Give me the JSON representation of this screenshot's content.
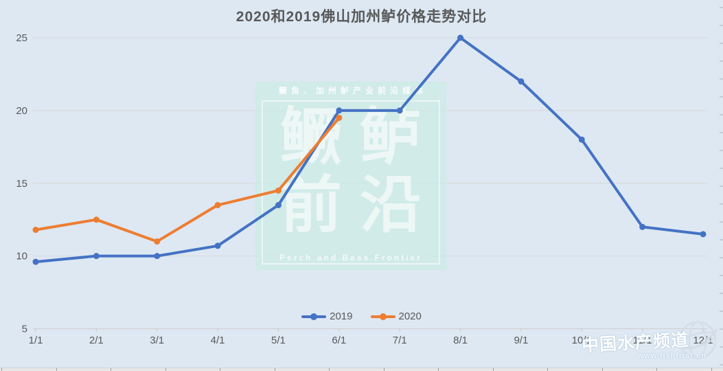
{
  "chart_data": {
    "type": "line",
    "title": "2020和2019佛山加州鲈价格走势对比",
    "xlabel": "",
    "ylabel": "",
    "categories": [
      "1/1",
      "2/1",
      "3/1",
      "4/1",
      "5/1",
      "6/1",
      "7/1",
      "8/1",
      "9/1",
      "10/1",
      "11/1",
      "12/1"
    ],
    "series": [
      {
        "name": "2019",
        "color": "#4472c4",
        "values": [
          9.6,
          10,
          10,
          10.7,
          13.5,
          20,
          20,
          25,
          22,
          18,
          12,
          11.5
        ]
      },
      {
        "name": "2020",
        "color": "#ed7d31",
        "values": [
          11.8,
          12.5,
          11,
          13.5,
          14.5,
          19.5
        ]
      }
    ],
    "ylim": [
      5,
      25
    ],
    "yticks": [
      5,
      10,
      15,
      20,
      25
    ],
    "grid": true,
    "legend_position": "bottom"
  },
  "watermark_center": {
    "top_text": "鳜鱼、加州鲈产业前沿媒体",
    "line1": "鳜鲈",
    "line2": "前沿",
    "bottom_text": "Perch and Bass Frontier"
  },
  "watermark_corner": {
    "brand": "中国水产频道",
    "url": "www.fishfirst.cn",
    "icon": "globe-icon"
  },
  "colors": {
    "background": "#dde8f3",
    "gridline": "#d8d8d8",
    "axis_line": "#cfcfcf",
    "axis_text": "#595959",
    "title_text": "#595959",
    "series_2019": "#4472c4",
    "series_2020": "#ed7d31",
    "watermark_fill": "#cbece3"
  }
}
